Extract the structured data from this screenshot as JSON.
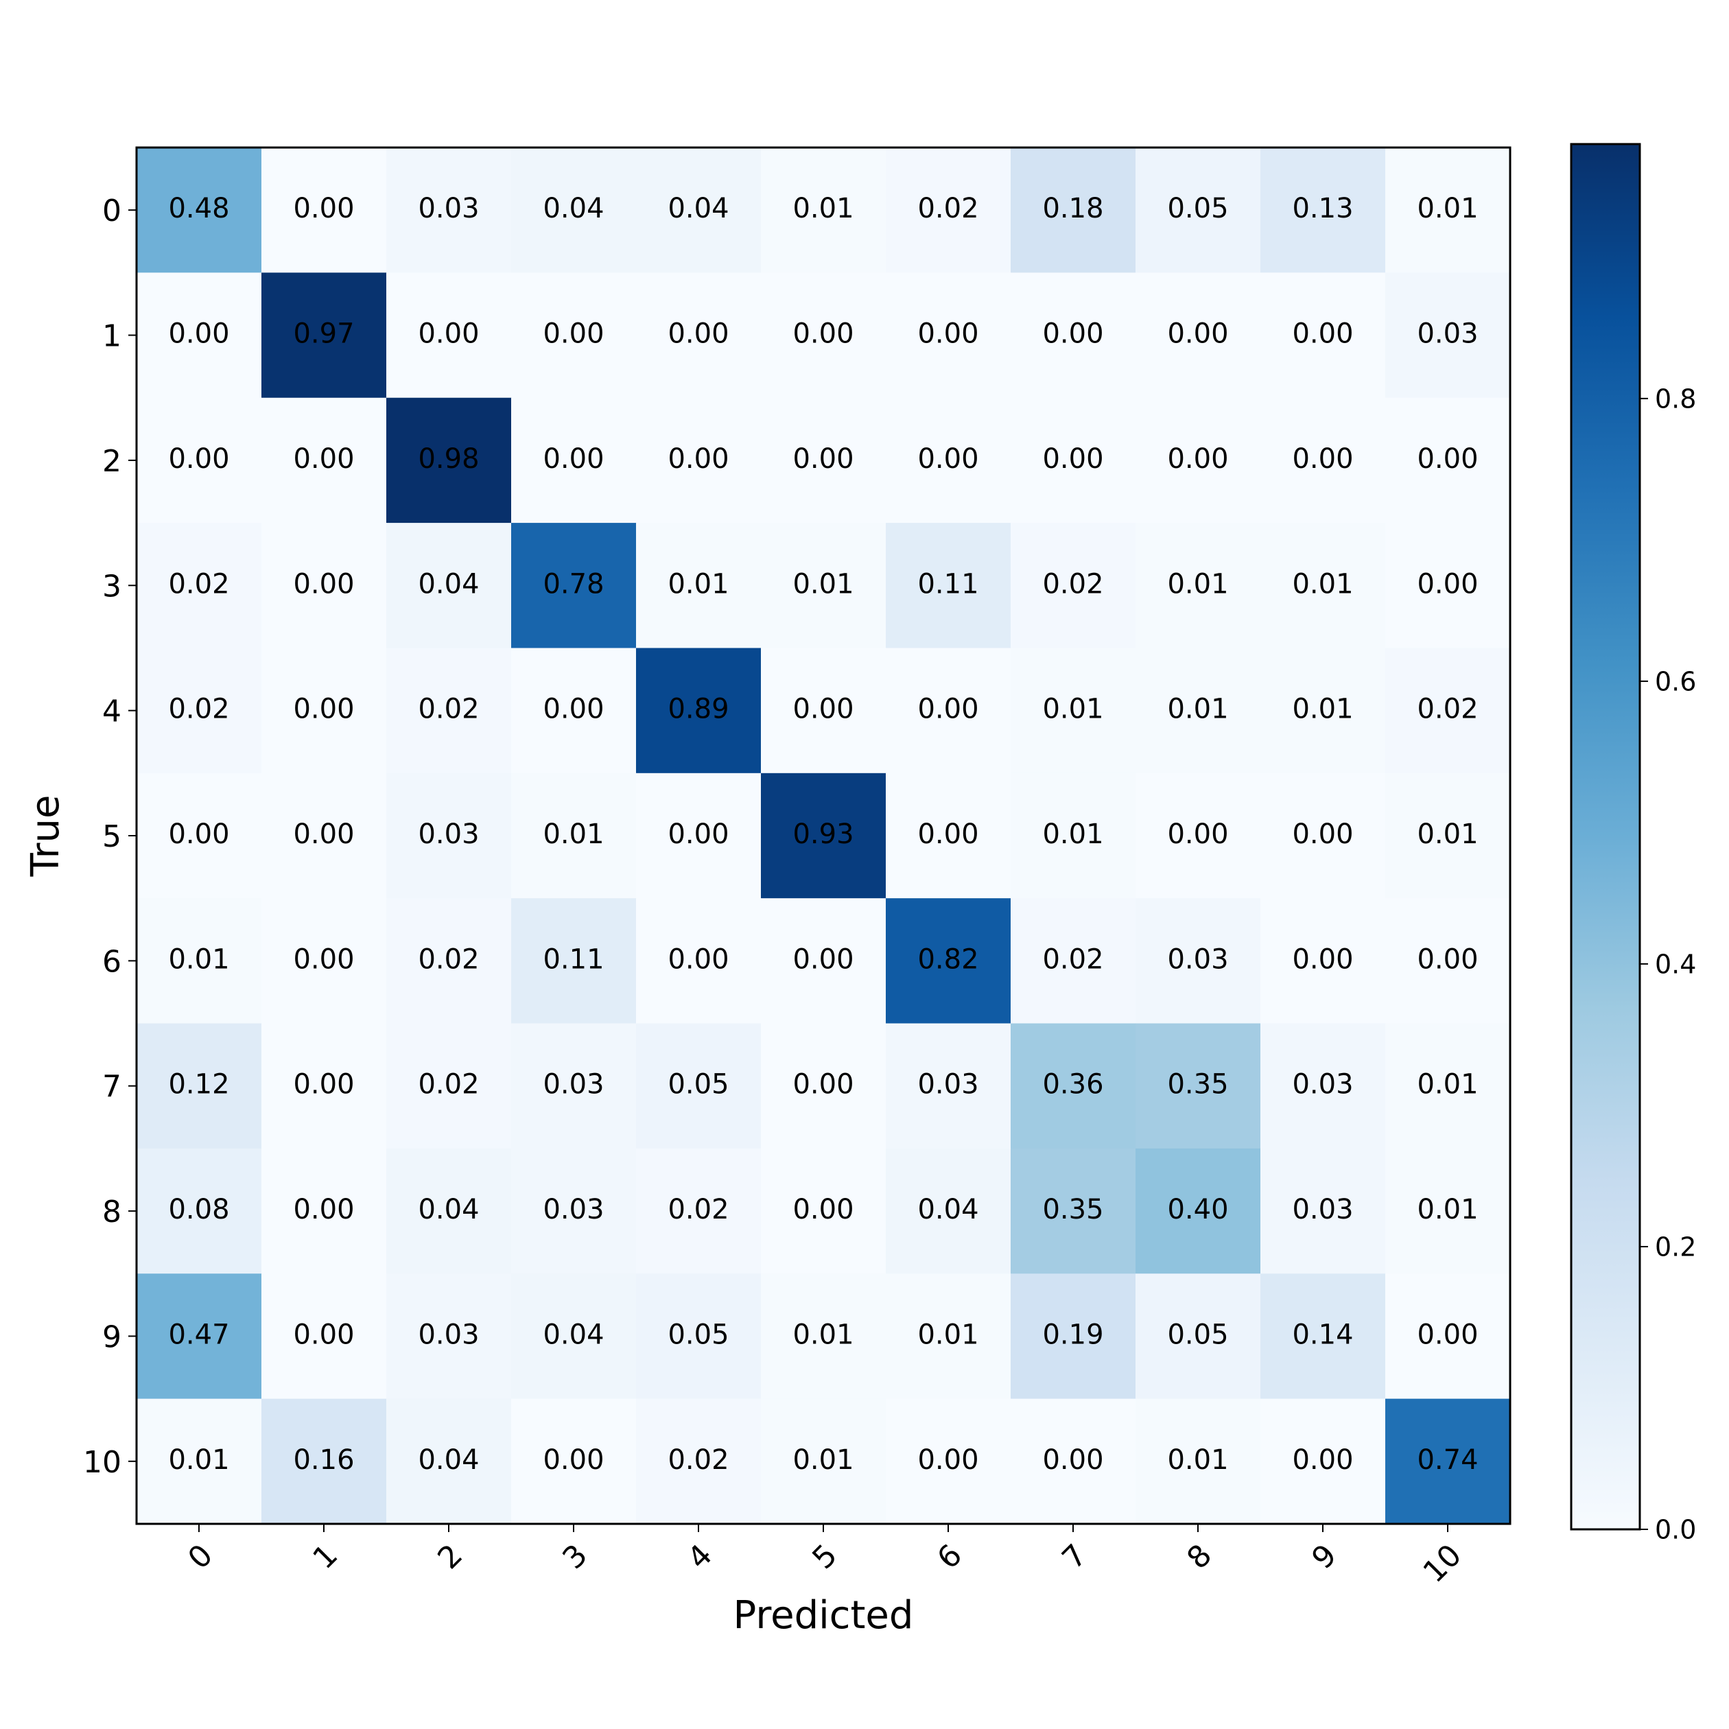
{
  "chart_data": {
    "type": "heatmap",
    "x_label": "Predicted",
    "y_label": "True",
    "x_categories": [
      "0",
      "1",
      "2",
      "3",
      "4",
      "5",
      "6",
      "7",
      "8",
      "9",
      "10"
    ],
    "y_categories": [
      "0",
      "1",
      "2",
      "3",
      "4",
      "5",
      "6",
      "7",
      "8",
      "9",
      "10"
    ],
    "values": [
      [
        0.48,
        0,
        0.03,
        0.04,
        0.04,
        0.01,
        0.02,
        0.18,
        0.05,
        0.13,
        0.01
      ],
      [
        0,
        0.97,
        0,
        0,
        0,
        0,
        0,
        0,
        0,
        0,
        0.03
      ],
      [
        0,
        0,
        0.98,
        0,
        0,
        0,
        0,
        0,
        0,
        0,
        0
      ],
      [
        0.02,
        0,
        0.04,
        0.78,
        0.01,
        0.01,
        0.11,
        0.02,
        0.01,
        0.01,
        0
      ],
      [
        0.02,
        0,
        0.02,
        0,
        0.89,
        0,
        0,
        0.01,
        0.01,
        0.01,
        0.02
      ],
      [
        0,
        0,
        0.03,
        0.01,
        0,
        0.93,
        0,
        0.01,
        0,
        0,
        0.01
      ],
      [
        0.01,
        0,
        0.02,
        0.11,
        0,
        0,
        0.82,
        0.02,
        0.03,
        0,
        0
      ],
      [
        0.12,
        0,
        0.02,
        0.03,
        0.05,
        0,
        0.03,
        0.36,
        0.35,
        0.03,
        0.01
      ],
      [
        0.08,
        0,
        0.04,
        0.03,
        0.02,
        0,
        0.04,
        0.35,
        0.4,
        0.03,
        0.01
      ],
      [
        0.47,
        0,
        0.03,
        0.04,
        0.05,
        0.01,
        0.01,
        0.19,
        0.05,
        0.14,
        0
      ],
      [
        0.01,
        0.16,
        0.04,
        0,
        0.02,
        0.01,
        0,
        0,
        0.01,
        0,
        0.74
      ]
    ],
    "value_labels": [
      [
        "0.48",
        "0.00",
        "0.03",
        "0.04",
        "0.04",
        "0.01",
        "0.02",
        "0.18",
        "0.05",
        "0.13",
        "0.01"
      ],
      [
        "0.00",
        "0.97",
        "0.00",
        "0.00",
        "0.00",
        "0.00",
        "0.00",
        "0.00",
        "0.00",
        "0.00",
        "0.03"
      ],
      [
        "0.00",
        "0.00",
        "0.98",
        "0.00",
        "0.00",
        "0.00",
        "0.00",
        "0.00",
        "0.00",
        "0.00",
        "0.00"
      ],
      [
        "0.02",
        "0.00",
        "0.04",
        "0.78",
        "0.01",
        "0.01",
        "0.11",
        "0.02",
        "0.01",
        "0.01",
        "0.00"
      ],
      [
        "0.02",
        "0.00",
        "0.02",
        "0.00",
        "0.89",
        "0.00",
        "0.00",
        "0.01",
        "0.01",
        "0.01",
        "0.02"
      ],
      [
        "0.00",
        "0.00",
        "0.03",
        "0.01",
        "0.00",
        "0.93",
        "0.00",
        "0.01",
        "0.00",
        "0.00",
        "0.01"
      ],
      [
        "0.01",
        "0.00",
        "0.02",
        "0.11",
        "0.00",
        "0.00",
        "0.82",
        "0.02",
        "0.03",
        "0.00",
        "0.00"
      ],
      [
        "0.12",
        "0.00",
        "0.02",
        "0.03",
        "0.05",
        "0.00",
        "0.03",
        "0.36",
        "0.35",
        "0.03",
        "0.01"
      ],
      [
        "0.08",
        "0.00",
        "0.04",
        "0.03",
        "0.02",
        "0.00",
        "0.04",
        "0.35",
        "0.40",
        "0.03",
        "0.01"
      ],
      [
        "0.47",
        "0.00",
        "0.03",
        "0.04",
        "0.05",
        "0.01",
        "0.01",
        "0.19",
        "0.05",
        "0.14",
        "0.00"
      ],
      [
        "0.01",
        "0.16",
        "0.04",
        "0.00",
        "0.02",
        "0.01",
        "0.00",
        "0.00",
        "0.01",
        "0.00",
        "0.74"
      ]
    ],
    "colormap": "Blues",
    "zlim": [
      0,
      0.98
    ],
    "zticks": [
      {
        "value": 0,
        "label": "0.0"
      },
      {
        "value": 0.2,
        "label": "0.2"
      },
      {
        "value": 0.4,
        "label": "0.4"
      },
      {
        "value": 0.6,
        "label": "0.6"
      },
      {
        "value": 0.8,
        "label": "0.8"
      }
    ]
  }
}
